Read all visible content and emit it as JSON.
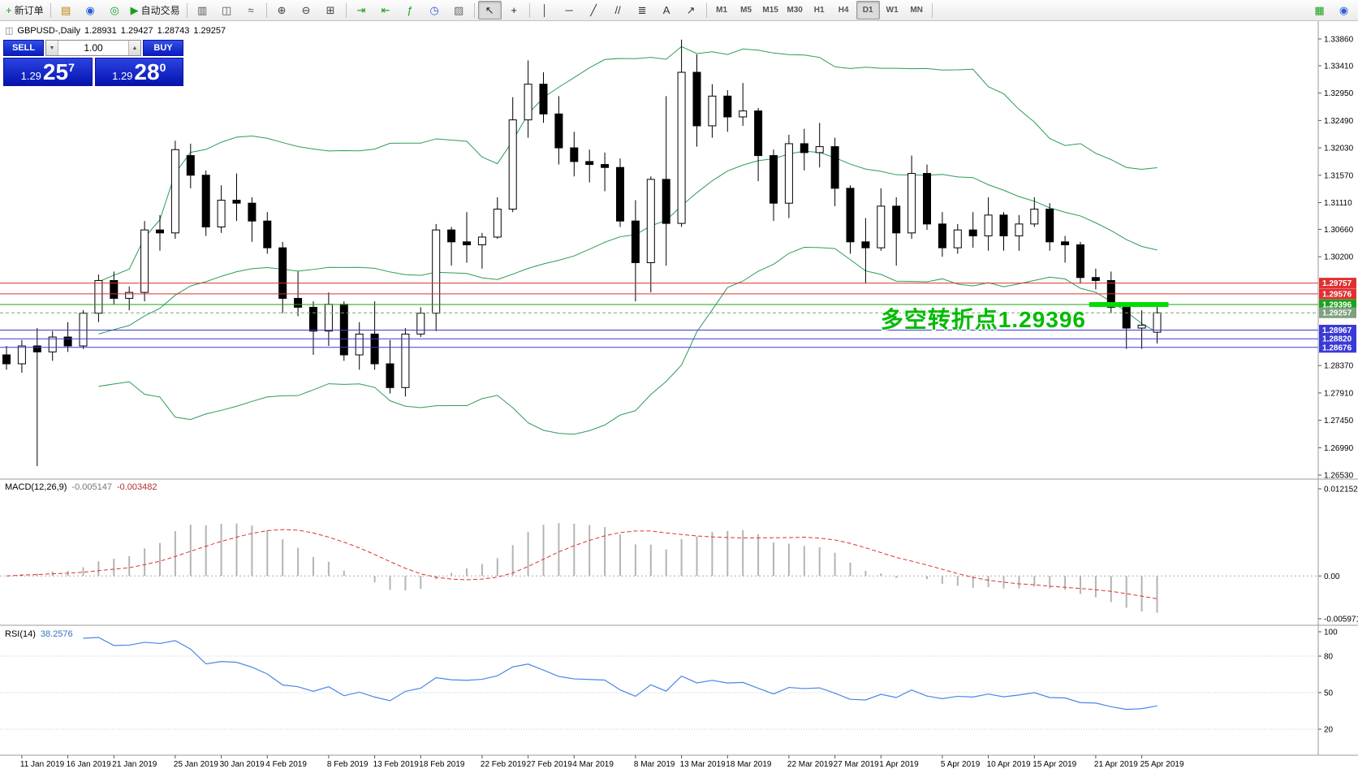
{
  "toolbar": {
    "items": [
      {
        "name": "new-order-button",
        "glyph": "+",
        "glyph_color": "#18A018",
        "label": "新订单"
      },
      {
        "sep": true
      },
      {
        "name": "charts-window-icon",
        "glyph": "▤",
        "glyph_color": "#B8860B"
      },
      {
        "name": "market-watch-icon",
        "glyph": "◉",
        "glyph_color": "#2B5FD9"
      },
      {
        "name": "navigator-icon",
        "glyph": "◎",
        "glyph_color": "#18A018"
      },
      {
        "name": "autotrading-button",
        "glyph": "▶",
        "glyph_color": "#18A018",
        "label": "自动交易"
      },
      {
        "sep": true
      },
      {
        "name": "bar-chart-icon",
        "glyph": "▥",
        "glyph_color": "#555555"
      },
      {
        "name": "candlestick-chart-icon",
        "glyph": "◫",
        "glyph_color": "#555555"
      },
      {
        "name": "line-chart-icon",
        "glyph": "≈",
        "glyph_color": "#555555"
      },
      {
        "sep": true
      },
      {
        "name": "zoom-in-icon",
        "glyph": "⊕",
        "glyph_color": "#444444"
      },
      {
        "name": "zoom-out-icon",
        "glyph": "⊖",
        "glyph_color": "#444444"
      },
      {
        "name": "tile-windows-icon",
        "glyph": "⊞",
        "glyph_color": "#444444"
      },
      {
        "sep": true
      },
      {
        "name": "auto-scroll-icon",
        "glyph": "⇥",
        "glyph_color": "#18A018"
      },
      {
        "name": "chart-shift-icon",
        "glyph": "⇤",
        "glyph_color": "#18A018"
      },
      {
        "name": "indicators-icon",
        "glyph": "ƒ",
        "glyph_color": "#18A018"
      },
      {
        "name": "periods-icon",
        "glyph": "◷",
        "glyph_color": "#2B5FD9"
      },
      {
        "name": "templates-icon",
        "glyph": "▨",
        "glyph_color": "#666666"
      },
      {
        "sep": true
      },
      {
        "name": "cursor-icon",
        "glyph": "↖",
        "glyph_color": "#222222",
        "active": true
      },
      {
        "name": "crosshair-icon",
        "glyph": "+",
        "glyph_color": "#222222"
      },
      {
        "sep": true
      },
      {
        "name": "vertical-line-icon",
        "glyph": "│",
        "glyph_color": "#333333"
      },
      {
        "name": "horizontal-line-icon",
        "glyph": "─",
        "glyph_color": "#333333"
      },
      {
        "name": "trendline-icon",
        "glyph": "╱",
        "glyph_color": "#333333"
      },
      {
        "name": "channel-icon",
        "glyph": "//",
        "glyph_color": "#333333"
      },
      {
        "name": "fibonacci-icon",
        "glyph": "≣",
        "glyph_color": "#333333"
      },
      {
        "name": "text-icon",
        "glyph": "A",
        "glyph_color": "#333333"
      },
      {
        "name": "arrows-icon",
        "glyph": "↗",
        "glyph_color": "#333333"
      },
      {
        "sep": true
      },
      {
        "name": "timeframe-m1",
        "label": "M1",
        "tf": true
      },
      {
        "name": "timeframe-m5",
        "label": "M5",
        "tf": true
      },
      {
        "name": "timeframe-m15",
        "label": "M15",
        "tf": true
      },
      {
        "name": "timeframe-m30",
        "label": "M30",
        "tf": true
      },
      {
        "name": "timeframe-h1",
        "label": "H1",
        "tf": true
      },
      {
        "name": "timeframe-h4",
        "label": "H4",
        "tf": true
      },
      {
        "name": "timeframe-d1",
        "label": "D1",
        "tf": true,
        "active": true
      },
      {
        "name": "timeframe-w1",
        "label": "W1",
        "tf": true
      },
      {
        "name": "timeframe-mn",
        "label": "MN",
        "tf": true
      },
      {
        "sep": true
      },
      {
        "name": "deposit-icon",
        "glyph": "▦",
        "glyph_color": "#18A018",
        "right": true
      },
      {
        "name": "community-icon",
        "glyph": "◉",
        "glyph_color": "#2B5FD9",
        "right": true
      }
    ]
  },
  "chart_header": {
    "icon": "◫",
    "symbol": "GBPUSD-,Daily",
    "open": "1.28931",
    "high": "1.29427",
    "low": "1.28743",
    "close": "1.29257"
  },
  "trade_panel": {
    "sell_label": "SELL",
    "buy_label": "BUY",
    "volume": "1.00",
    "spinner_down": "▼",
    "spinner_up": "▲",
    "sell_price": {
      "prefix": "1.29",
      "big": "25",
      "sup": "7"
    },
    "buy_price": {
      "prefix": "1.29",
      "big": "28",
      "sup": "0"
    }
  },
  "annotation": {
    "text": "多空转折点1.29396",
    "color": "#00BB00"
  },
  "macd_panel": {
    "label": "MACD(12,26,9)",
    "value_main": "-0.005147",
    "value_signal": "-0.003482",
    "axis": [
      "0.012152",
      "0.00",
      "-0.005971"
    ]
  },
  "rsi_panel": {
    "label": "RSI(14)",
    "value": "38.2576",
    "axis": [
      "100",
      "80",
      "50",
      "20"
    ],
    "level_values": [
      80,
      50,
      20
    ]
  },
  "price_axis": {
    "ticks": [
      "1.33860",
      "1.33410",
      "1.32950",
      "1.32490",
      "1.32030",
      "1.31570",
      "1.31110",
      "1.30660",
      "1.30200",
      "1.28370",
      "1.27910",
      "1.27450",
      "1.26990",
      "1.26530"
    ]
  },
  "levels": [
    {
      "name": "resistance-line-1",
      "price": 1.29757,
      "label": "1.29757",
      "color": "#E03131",
      "line": "solid"
    },
    {
      "name": "resistance-line-2",
      "price": 1.29576,
      "label": "1.29576",
      "color": "#E03131",
      "line": "solid"
    },
    {
      "name": "pivot-line",
      "price": 1.29396,
      "label": "1.29396",
      "color": "#1FA11F",
      "line": "solid"
    },
    {
      "name": "current-price-line",
      "price": 1.29257,
      "label": "1.29257",
      "color": "#7F9F7F",
      "line": "dashed"
    },
    {
      "name": "support-line-1",
      "price": 1.28967,
      "label": "1.28967",
      "color": "#3A3AD6",
      "line": "solid"
    },
    {
      "name": "support-line-2",
      "price": 1.2882,
      "label": "1.28820",
      "color": "#3A3AD6",
      "line": "solid"
    },
    {
      "name": "support-line-3",
      "price": 1.28676,
      "label": "1.28676",
      "color": "#3A3AD6",
      "line": "solid"
    }
  ],
  "chart_data": {
    "type": "candlestick",
    "symbol": "GBPUSD",
    "timeframe": "Daily",
    "price_view": {
      "top_price": 1.3386,
      "bottom_price": 1.2653
    },
    "candles": [
      [
        1.2855,
        1.287,
        1.283,
        1.284
      ],
      [
        1.284,
        1.288,
        1.2825,
        1.287
      ],
      [
        1.287,
        1.29,
        1.2668,
        1.286
      ],
      [
        1.286,
        1.2895,
        1.2845,
        1.2885
      ],
      [
        1.2885,
        1.291,
        1.286,
        1.287
      ],
      [
        1.287,
        1.293,
        1.2865,
        1.2925
      ],
      [
        1.2925,
        1.299,
        1.291,
        1.298
      ],
      [
        1.298,
        1.2995,
        1.294,
        1.295
      ],
      [
        1.295,
        1.297,
        1.293,
        1.296
      ],
      [
        1.296,
        1.308,
        1.2945,
        1.3065
      ],
      [
        1.3065,
        1.309,
        1.303,
        1.306
      ],
      [
        1.306,
        1.3215,
        1.305,
        1.32
      ],
      [
        1.319,
        1.321,
        1.3135,
        1.3157
      ],
      [
        1.3157,
        1.3165,
        1.3055,
        1.307
      ],
      [
        1.307,
        1.314,
        1.306,
        1.3115
      ],
      [
        1.3115,
        1.316,
        1.308,
        1.311
      ],
      [
        1.311,
        1.312,
        1.3045,
        1.308
      ],
      [
        1.308,
        1.3095,
        1.3025,
        1.3035
      ],
      [
        1.3035,
        1.3045,
        1.2925,
        1.295
      ],
      [
        1.295,
        1.2995,
        1.292,
        1.2935
      ],
      [
        1.2935,
        1.2945,
        1.2855,
        1.2895
      ],
      [
        1.2895,
        1.296,
        1.287,
        1.294
      ],
      [
        1.294,
        1.2945,
        1.2845,
        1.2855
      ],
      [
        1.2855,
        1.291,
        1.283,
        1.289
      ],
      [
        1.289,
        1.2945,
        1.283,
        1.284
      ],
      [
        1.284,
        1.288,
        1.279,
        1.28
      ],
      [
        1.28,
        1.29,
        1.2785,
        1.289
      ],
      [
        1.289,
        1.2935,
        1.2885,
        1.2925
      ],
      [
        1.2925,
        1.3075,
        1.2895,
        1.3065
      ],
      [
        1.3065,
        1.307,
        1.3005,
        1.3045
      ],
      [
        1.3045,
        1.3095,
        1.301,
        1.304
      ],
      [
        1.304,
        1.306,
        1.3,
        1.3053
      ],
      [
        1.3053,
        1.312,
        1.305,
        1.31
      ],
      [
        1.31,
        1.3288,
        1.3095,
        1.325
      ],
      [
        1.325,
        1.335,
        1.322,
        1.331
      ],
      [
        1.331,
        1.333,
        1.3245,
        1.326
      ],
      [
        1.326,
        1.329,
        1.3175,
        1.3203
      ],
      [
        1.3203,
        1.323,
        1.3155,
        1.318
      ],
      [
        1.318,
        1.32,
        1.3145,
        1.3175
      ],
      [
        1.3175,
        1.3195,
        1.313,
        1.317
      ],
      [
        1.317,
        1.3185,
        1.307,
        1.308
      ],
      [
        1.308,
        1.3115,
        1.2945,
        1.301
      ],
      [
        1.301,
        1.3155,
        1.296,
        1.315
      ],
      [
        1.315,
        1.329,
        1.3005,
        1.3076
      ],
      [
        1.3076,
        1.3385,
        1.307,
        1.333
      ],
      [
        1.333,
        1.336,
        1.3205,
        1.324
      ],
      [
        1.324,
        1.331,
        1.322,
        1.329
      ],
      [
        1.329,
        1.33,
        1.323,
        1.3255
      ],
      [
        1.3255,
        1.3312,
        1.324,
        1.3265
      ],
      [
        1.3265,
        1.327,
        1.3147,
        1.319
      ],
      [
        1.319,
        1.32,
        1.308,
        1.311
      ],
      [
        1.311,
        1.3225,
        1.3085,
        1.321
      ],
      [
        1.321,
        1.3235,
        1.3165,
        1.3195
      ],
      [
        1.3195,
        1.3245,
        1.317,
        1.3205
      ],
      [
        1.3205,
        1.322,
        1.3105,
        1.3135
      ],
      [
        1.3135,
        1.314,
        1.3025,
        1.3045
      ],
      [
        1.3045,
        1.3085,
        1.2975,
        1.3035
      ],
      [
        1.3035,
        1.3135,
        1.303,
        1.3105
      ],
      [
        1.3105,
        1.312,
        1.3005,
        1.306
      ],
      [
        1.306,
        1.319,
        1.305,
        1.316
      ],
      [
        1.316,
        1.3175,
        1.3065,
        1.3075
      ],
      [
        1.3075,
        1.3095,
        1.302,
        1.3035
      ],
      [
        1.3035,
        1.3075,
        1.3025,
        1.3065
      ],
      [
        1.3065,
        1.3095,
        1.3035,
        1.3055
      ],
      [
        1.3055,
        1.312,
        1.303,
        1.309
      ],
      [
        1.309,
        1.3095,
        1.303,
        1.3055
      ],
      [
        1.3055,
        1.309,
        1.303,
        1.3075
      ],
      [
        1.3075,
        1.312,
        1.307,
        1.31
      ],
      [
        1.31,
        1.311,
        1.303,
        1.3045
      ],
      [
        1.3045,
        1.3055,
        1.301,
        1.304
      ],
      [
        1.304,
        1.3045,
        1.2975,
        1.2985
      ],
      [
        1.2985,
        1.3,
        1.2965,
        1.298
      ],
      [
        1.298,
        1.2995,
        1.2925,
        1.2935
      ],
      [
        1.2935,
        1.294,
        1.2865,
        1.29
      ],
      [
        1.29,
        1.293,
        1.2865,
        1.2905
      ],
      [
        1.28931,
        1.29427,
        1.28743,
        1.29257
      ]
    ],
    "x_axis_labels": [
      {
        "text": "11 Jan 2019",
        "index": 1
      },
      {
        "text": "16 Jan 2019",
        "index": 4
      },
      {
        "text": "21 Jan 2019",
        "index": 7
      },
      {
        "text": "25 Jan 2019",
        "index": 11
      },
      {
        "text": "30 Jan 2019",
        "index": 14
      },
      {
        "text": "4 Feb 2019",
        "index": 17
      },
      {
        "text": "8 Feb 2019",
        "index": 21
      },
      {
        "text": "13 Feb 2019",
        "index": 24
      },
      {
        "text": "18 Feb 2019",
        "index": 27
      },
      {
        "text": "22 Feb 2019",
        "index": 31
      },
      {
        "text": "27 Feb 2019",
        "index": 34
      },
      {
        "text": "4 Mar 2019",
        "index": 37
      },
      {
        "text": "8 Mar 2019",
        "index": 41
      },
      {
        "text": "13 Mar 2019",
        "index": 44
      },
      {
        "text": "18 Mar 2019",
        "index": 47
      },
      {
        "text": "22 Mar 2019",
        "index": 51
      },
      {
        "text": "27 Mar 2019",
        "index": 54
      },
      {
        "text": "1 Apr 2019",
        "index": 57
      },
      {
        "text": "5 Apr 2019",
        "index": 61
      },
      {
        "text": "10 Apr 2019",
        "index": 64
      },
      {
        "text": "15 Apr 2019",
        "index": 67
      },
      {
        "text": "21 Apr 2019",
        "index": 71
      },
      {
        "text": "25 Apr 2019",
        "index": 74
      }
    ],
    "overlays": [
      {
        "type": "bollinger_bands",
        "period": 20,
        "deviation": 2,
        "color": "#2E9B57"
      }
    ],
    "highlight_segment": {
      "price": 1.29396,
      "from_index": 71,
      "to_index": 75,
      "color": "#00DD00",
      "thickness": 6
    },
    "colors": {
      "candle_up_fill": "#FFFFFF",
      "candle_down_fill": "#000000",
      "candle_outline": "#000000",
      "macd_histogram": "#B4B4B4",
      "macd_signal": "#E03030",
      "rsi_line": "#4A86E8",
      "axis_line": "#9A9A9A",
      "axis_text": "#000000"
    }
  }
}
